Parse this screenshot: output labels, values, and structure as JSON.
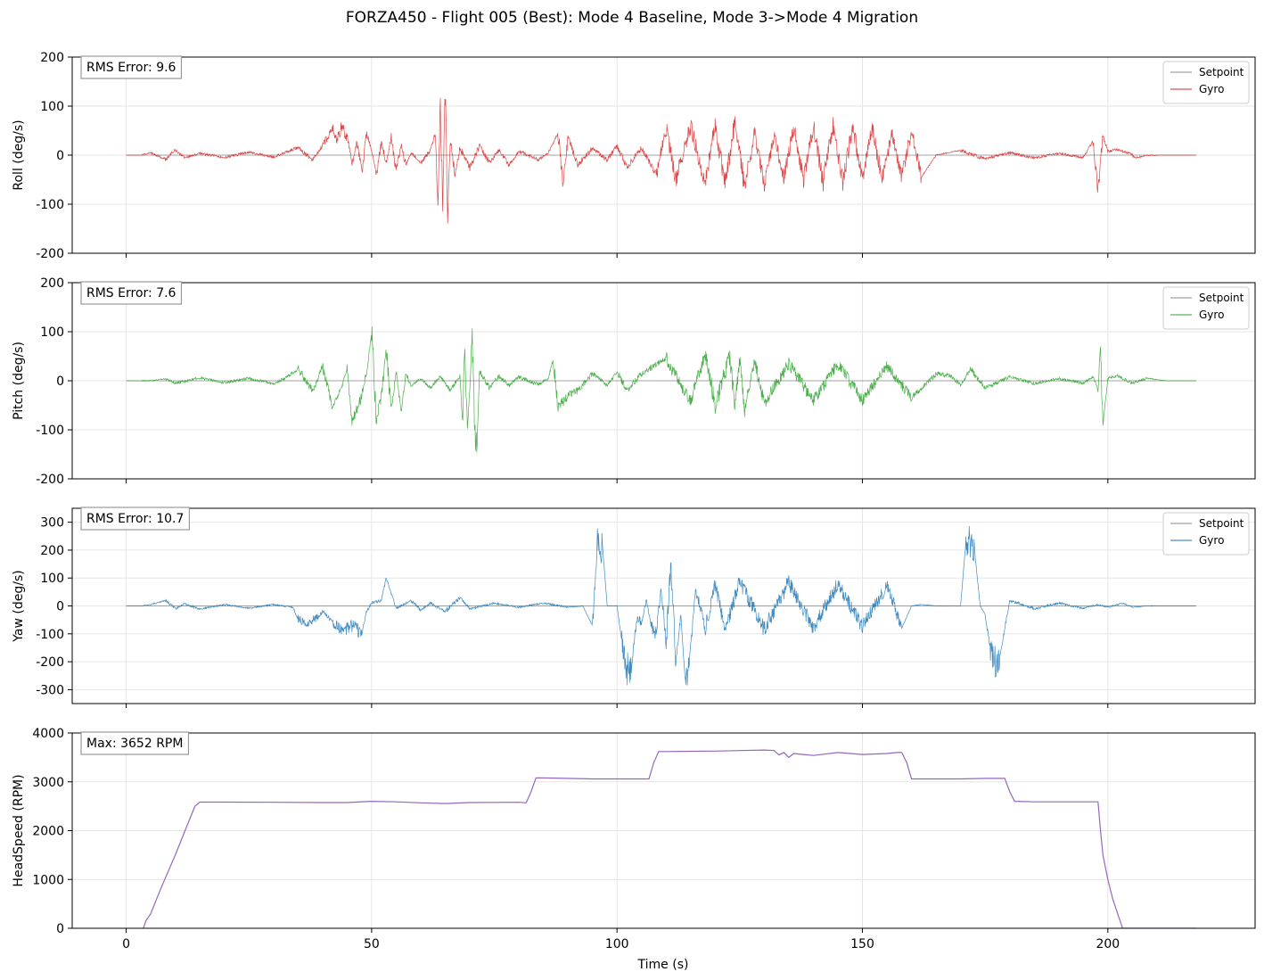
{
  "chart_data": {
    "title": "FORZA450 - Flight 005 (Best): Mode 4 Baseline, Mode 3->Mode 4 Migration",
    "xlabel": "Time (s)",
    "xlim": [
      -11,
      230
    ],
    "xticks": [
      0,
      50,
      100,
      150,
      200
    ],
    "panels": [
      {
        "type": "line",
        "ylabel": "Roll (deg/s)",
        "ylim": [
          -200,
          200
        ],
        "yticks": [
          -200,
          -100,
          0,
          100,
          200
        ],
        "annotation": "RMS Error: 9.6",
        "grid": true,
        "legend_position": "upper right",
        "series": [
          {
            "name": "Setpoint",
            "color": "#888888",
            "kind": "setpoint"
          },
          {
            "name": "Gyro",
            "color": "#d62728",
            "kind": "gyro",
            "x": [
              0,
              3,
              5,
              8,
              10,
              12,
              15,
              20,
              25,
              30,
              33,
              35,
              38,
              40,
              42,
              43,
              44,
              45,
              46,
              47,
              48,
              49,
              50,
              51,
              52,
              53,
              54,
              55,
              56,
              57,
              58,
              60,
              62,
              63,
              63.5,
              64,
              64.5,
              65,
              65.5,
              66,
              67,
              68,
              70,
              72,
              74,
              76,
              78,
              80,
              84,
              86,
              88,
              89,
              90,
              92,
              95,
              98,
              100,
              102,
              105,
              108,
              110,
              112,
              115,
              118,
              120,
              122,
              124,
              126,
              128,
              130,
              132,
              134,
              136,
              138,
              140,
              142,
              144,
              146,
              148,
              150,
              152,
              154,
              156,
              158,
              160,
              162,
              165,
              170,
              175,
              180,
              185,
              190,
              195,
              197,
              198,
              199,
              200,
              202,
              204,
              206,
              208,
              212,
              218
            ],
            "y": [
              0,
              0,
              5,
              -8,
              10,
              -6,
              4,
              -5,
              6,
              -4,
              8,
              15,
              -10,
              20,
              55,
              35,
              60,
              40,
              -20,
              30,
              -35,
              45,
              10,
              -40,
              25,
              -15,
              35,
              -30,
              20,
              -20,
              5,
              -15,
              10,
              45,
              -110,
              110,
              -120,
              120,
              -130,
              30,
              -40,
              15,
              -25,
              20,
              -15,
              10,
              -20,
              8,
              -10,
              5,
              45,
              -60,
              35,
              -20,
              15,
              -10,
              20,
              -25,
              15,
              -40,
              55,
              -50,
              60,
              -55,
              65,
              -60,
              70,
              -65,
              50,
              -60,
              40,
              -45,
              55,
              -50,
              60,
              -55,
              65,
              -55,
              60,
              -50,
              55,
              -50,
              45,
              -45,
              50,
              -45,
              0,
              10,
              -8,
              5,
              -6,
              4,
              -5,
              30,
              -75,
              40,
              8,
              10,
              5,
              -5,
              0,
              0,
              0
            ]
          }
        ]
      },
      {
        "type": "line",
        "ylabel": "Pitch (deg/s)",
        "ylim": [
          -200,
          200
        ],
        "yticks": [
          -200,
          -100,
          0,
          100,
          200
        ],
        "annotation": "RMS Error: 7.6",
        "grid": true,
        "legend_position": "upper right",
        "series": [
          {
            "name": "Setpoint",
            "color": "#888888",
            "kind": "setpoint"
          },
          {
            "name": "Gyro",
            "color": "#2ca02c",
            "kind": "gyro",
            "x": [
              0,
              5,
              8,
              10,
              15,
              20,
              25,
              30,
              33,
              35,
              38,
              40,
              42,
              44,
              45,
              46,
              48,
              49,
              50,
              51,
              52,
              53,
              54,
              55,
              56,
              57,
              58,
              60,
              62,
              64,
              66,
              68,
              68.5,
              69,
              69.5,
              70,
              70.5,
              71,
              71.5,
              72,
              74,
              76,
              78,
              80,
              84,
              86,
              87,
              88,
              90,
              92,
              95,
              98,
              100,
              102,
              105,
              110,
              115,
              118,
              120,
              123,
              124,
              125,
              126,
              128,
              130,
              135,
              140,
              145,
              150,
              155,
              160,
              165,
              168,
              170,
              172,
              175,
              180,
              185,
              190,
              195,
              197,
              198,
              198.5,
              199,
              200,
              202,
              205,
              208,
              212,
              218
            ],
            "y": [
              0,
              0,
              4,
              -5,
              6,
              -4,
              5,
              -6,
              8,
              25,
              -20,
              30,
              -55,
              -10,
              25,
              -85,
              -30,
              20,
              105,
              -80,
              -30,
              65,
              -60,
              20,
              -65,
              15,
              -10,
              5,
              -15,
              10,
              -20,
              10,
              -85,
              75,
              -95,
              -20,
              105,
              -100,
              -125,
              20,
              -15,
              10,
              -10,
              8,
              -8,
              5,
              45,
              -55,
              -30,
              -20,
              15,
              -10,
              20,
              -20,
              15,
              45,
              -40,
              55,
              -50,
              50,
              -55,
              45,
              -60,
              40,
              -45,
              35,
              -40,
              35,
              -40,
              30,
              -35,
              15,
              10,
              -10,
              25,
              -15,
              8,
              -6,
              5,
              -5,
              8,
              -20,
              75,
              -90,
              5,
              10,
              -5,
              5,
              0,
              0
            ]
          }
        ]
      },
      {
        "type": "line",
        "ylabel": "Yaw (deg/s)",
        "ylim": [
          -350,
          350
        ],
        "yticks": [
          -300,
          -200,
          -100,
          0,
          100,
          200,
          300
        ],
        "annotation": "RMS Error: 10.7",
        "grid": true,
        "legend_position": "upper right",
        "series": [
          {
            "name": "Setpoint",
            "color": "#888888",
            "kind": "setpoint"
          },
          {
            "name": "Gyro",
            "color": "#1f77b4",
            "kind": "gyro",
            "x": [
              0,
              3,
              5,
              8,
              10,
              12,
              15,
              20,
              25,
              30,
              34,
              35,
              37,
              39,
              40,
              42,
              44,
              46,
              48,
              49,
              50,
              52,
              53,
              55,
              58,
              60,
              62,
              65,
              68,
              70,
              75,
              80,
              85,
              90,
              93,
              95,
              96,
              97,
              98,
              99,
              100,
              101,
              102,
              103,
              104,
              105,
              106,
              107,
              108,
              109,
              110,
              111,
              112,
              113,
              114,
              115,
              116,
              118,
              120,
              122,
              125,
              130,
              135,
              140,
              145,
              150,
              155,
              158,
              160,
              162,
              165,
              168,
              170,
              171,
              172,
              173,
              174,
              175,
              176,
              177,
              178,
              180,
              185,
              190,
              195,
              198,
              200,
              203,
              205,
              208,
              212,
              218
            ],
            "y": [
              0,
              0,
              5,
              20,
              -10,
              8,
              -12,
              5,
              -8,
              5,
              -5,
              -50,
              -60,
              -40,
              -20,
              -55,
              -90,
              -70,
              -100,
              -20,
              10,
              20,
              100,
              -10,
              20,
              -15,
              10,
              -20,
              30,
              -10,
              10,
              -5,
              10,
              -5,
              0,
              -70,
              215,
              225,
              0,
              0,
              0,
              -130,
              -240,
              -200,
              -50,
              -60,
              20,
              -80,
              -100,
              60,
              -130,
              150,
              -200,
              -30,
              -290,
              -150,
              60,
              -80,
              80,
              -90,
              90,
              -85,
              85,
              -80,
              80,
              -75,
              75,
              -80,
              0,
              5,
              0,
              0,
              0,
              215,
              225,
              170,
              0,
              -30,
              -150,
              -200,
              -180,
              20,
              -10,
              10,
              -8,
              5,
              -5,
              10,
              -5,
              0,
              0,
              0
            ]
          }
        ]
      },
      {
        "type": "line",
        "ylabel": "HeadSpeed (RPM)",
        "ylim": [
          0,
          4000
        ],
        "yticks": [
          0,
          1000,
          2000,
          3000,
          4000
        ],
        "annotation": "Max: 3652 RPM",
        "grid": true,
        "legend_position": "",
        "series": [
          {
            "name": "",
            "color": "#9467bd",
            "kind": "headspeed",
            "x": [
              3.5,
              4,
              5,
              7,
              10,
              12,
              14,
              15,
              20,
              30,
              40,
              45,
              50,
              55,
              60,
              65,
              70,
              80,
              81.5,
              82.5,
              83.5,
              85,
              90,
              95,
              100,
              105,
              106.5,
              107.5,
              108.5,
              110,
              115,
              120,
              125,
              130,
              132,
              133,
              134,
              135,
              136,
              138,
              140,
              145,
              150,
              155,
              157,
              158,
              159,
              160,
              165,
              170,
              175,
              178,
              179,
              180,
              181,
              185,
              190,
              195,
              198,
              198.5,
              199,
              200,
              201,
              202,
              202.5,
              203,
              218
            ],
            "y": [
              0,
              150,
              300,
              800,
              1500,
              2000,
              2500,
              2585,
              2585,
              2580,
              2575,
              2575,
              2600,
              2590,
              2570,
              2555,
              2575,
              2580,
              2570,
              2800,
              3080,
              3080,
              3070,
              3060,
              3060,
              3060,
              3060,
              3400,
              3620,
              3620,
              3625,
              3630,
              3640,
              3652,
              3640,
              3550,
              3600,
              3500,
              3580,
              3560,
              3540,
              3600,
              3560,
              3580,
              3600,
              3600,
              3400,
              3060,
              3060,
              3060,
              3070,
              3070,
              3070,
              2800,
              2600,
              2590,
              2590,
              2590,
              2590,
              2000,
              1500,
              1000,
              600,
              300,
              150,
              0,
              0
            ]
          }
        ]
      }
    ]
  }
}
